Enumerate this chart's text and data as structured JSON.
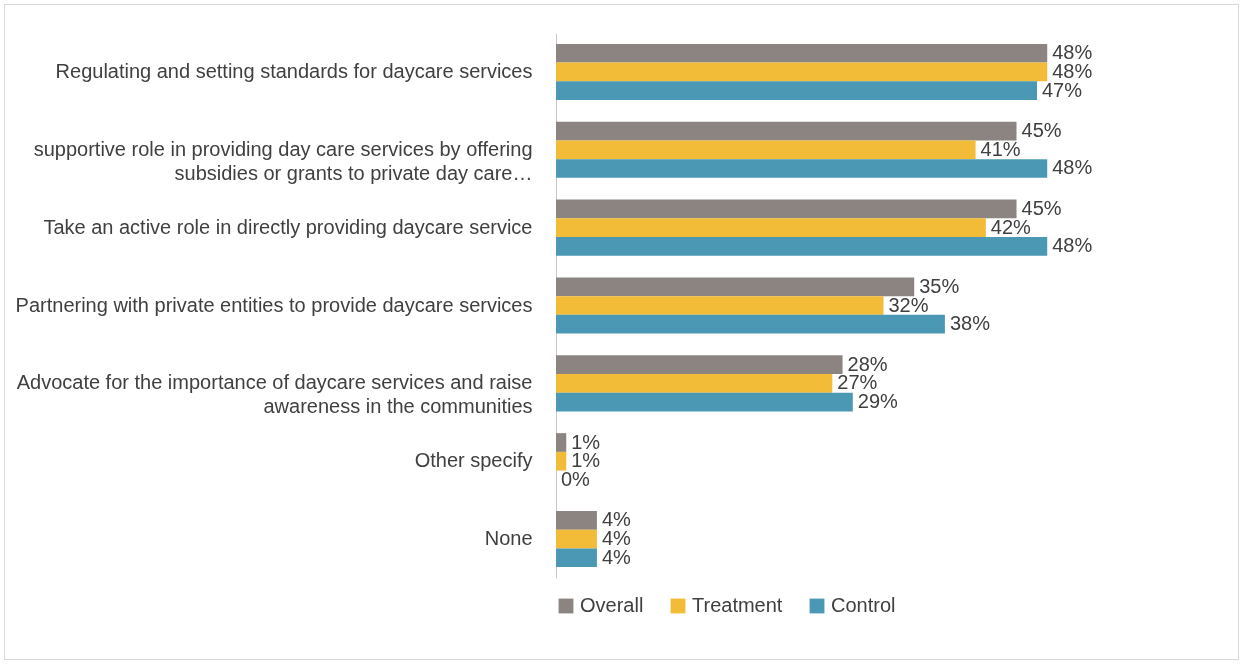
{
  "chart_data": {
    "type": "bar",
    "orientation": "horizontal",
    "legend": "bottom",
    "categories": [
      "Regulating and setting standards for daycare services",
      "supportive role in providing day care services by offering subsidies or grants to private day care…",
      "Take an active role in directly providing daycare service",
      "Partnering with private entities to provide daycare services",
      "Advocate for the importance of daycare services and raise awareness in the communities",
      "Other specify",
      "None"
    ],
    "series": [
      {
        "name": "Overall",
        "color": "#8c8480",
        "values": [
          48,
          45,
          45,
          35,
          28,
          1,
          4
        ],
        "value_labels": [
          "48%",
          "45%",
          "45%",
          "35%",
          "28%",
          "1%",
          "4%"
        ]
      },
      {
        "name": "Treatment",
        "color": "#f2bc38",
        "values": [
          48,
          41,
          42,
          32,
          27,
          1,
          4
        ],
        "value_labels": [
          "48%",
          "41%",
          "42%",
          "32%",
          "27%",
          "1%",
          "4%"
        ]
      },
      {
        "name": "Control",
        "color": "#4a98b4",
        "values": [
          47,
          48,
          48,
          38,
          29,
          0,
          4
        ],
        "value_labels": [
          "47%",
          "48%",
          "48%",
          "38%",
          "29%",
          "0%",
          "4%"
        ]
      }
    ]
  }
}
